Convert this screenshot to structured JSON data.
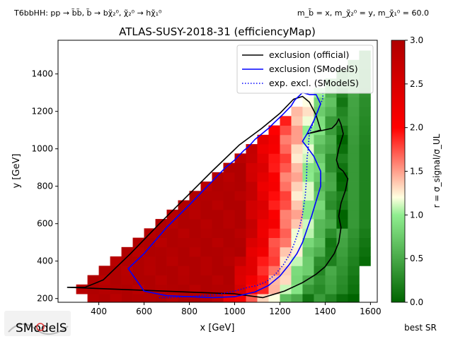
{
  "header": {
    "process": "T6bbHH: pp → b̃b̃, b̃ → bχ̃₂⁰, χ̃₂⁰ → hχ̃₁⁰",
    "masses": "m_b̃ = x, m_χ̃₂⁰ = y, m_χ̃₁⁰ = 60.0"
  },
  "chart_data": {
    "type": "heatmap",
    "title": "ATLAS-SUSY-2018-31 (efficiencyMap)",
    "xlabel": "x [GeV]",
    "ylabel": "y [GeV]",
    "xlim": [
      220,
      1630
    ],
    "ylim": [
      180,
      1580
    ],
    "xticks": [
      400,
      600,
      800,
      1000,
      1200,
      1400,
      1600
    ],
    "yticks": [
      200,
      400,
      600,
      800,
      1000,
      1200,
      1400
    ],
    "grid": false,
    "legend_placement": "top-right",
    "colorbar": {
      "label": "r = σ_signal/σ_UL",
      "range": [
        0.0,
        3.0
      ],
      "ticks": [
        0.0,
        0.5,
        1.0,
        1.5,
        2.0,
        2.5,
        3.0
      ],
      "colors": [
        "#006400",
        "#90ee90",
        "#ffffe0",
        "#ff0000",
        "#b00000"
      ]
    },
    "grid_cells": {
      "x_step": 50,
      "y_step": 50,
      "x_range": [
        325,
        1600
      ],
      "y_range": [
        200,
        1500
      ],
      "diagonal_offset": 60
    },
    "series": [
      {
        "name": "exclusion (official)",
        "color": "#000000",
        "style": "solid",
        "x": [
          260,
          1000,
          1125,
          1220,
          1300,
          1360,
          1400,
          1440,
          1460,
          1470,
          1460,
          1470,
          1490,
          1500,
          1480,
          1460,
          1450,
          1460,
          1480,
          1470,
          1460,
          1450,
          1430,
          1320,
          1380,
          1360,
          1330,
          1300,
          1260,
          1200,
          1120,
          1020,
          900,
          780,
          660,
          540,
          420,
          340,
          260
        ],
        "y": [
          260,
          225,
          205,
          240,
          285,
          330,
          370,
          440,
          500,
          580,
          640,
          710,
          780,
          840,
          880,
          900,
          940,
          1000,
          1080,
          1130,
          1160,
          1135,
          1110,
          1080,
          1100,
          1180,
          1250,
          1280,
          1265,
          1190,
          1110,
          1020,
          880,
          735,
          590,
          440,
          300,
          260,
          260
        ]
      },
      {
        "name": "exclusion (SModelS)",
        "color": "#0000ff",
        "style": "solid",
        "x": [
          1330,
          1300,
          1265,
          1250,
          1210,
          1175,
          1150,
          1120,
          1090,
          1060,
          1040,
          1000,
          960,
          880,
          800,
          700,
          600,
          530,
          600,
          700,
          800,
          900,
          1000,
          1090,
          1150,
          1200,
          1240,
          1275,
          1300,
          1320,
          1340,
          1360,
          1380,
          1380,
          1350,
          1320,
          1300,
          1320,
          1350,
          1380,
          1360,
          1330
        ],
        "y": [
          1290,
          1300,
          1260,
          1230,
          1180,
          1140,
          1110,
          1080,
          1050,
          1010,
          990,
          940,
          900,
          800,
          700,
          580,
          440,
          360,
          240,
          215,
          210,
          205,
          210,
          235,
          270,
          320,
          380,
          440,
          500,
          570,
          640,
          720,
          800,
          880,
          960,
          1010,
          1040,
          1080,
          1150,
          1240,
          1290,
          1290
        ]
      },
      {
        "name": "exp. excl. (SModelS)",
        "color": "#0000ff",
        "style": "dotted",
        "x": [
          1390,
          1390,
          1370,
          1350,
          1330,
          1325,
          1320,
          1318,
          1312,
          1300,
          1285,
          1265,
          1245,
          1215,
          1180,
          1140,
          1100,
          1060,
          1000,
          920,
          850,
          780,
          720,
          660
        ],
        "y": [
          1300,
          1270,
          1210,
          1150,
          1080,
          1000,
          950,
          850,
          750,
          650,
          570,
          500,
          440,
          380,
          330,
          290,
          270,
          260,
          240,
          220,
          215,
          210,
          205,
          205
        ]
      }
    ]
  },
  "footer": {
    "logo_text": "SModelS",
    "best_sr_label": "best SR"
  }
}
